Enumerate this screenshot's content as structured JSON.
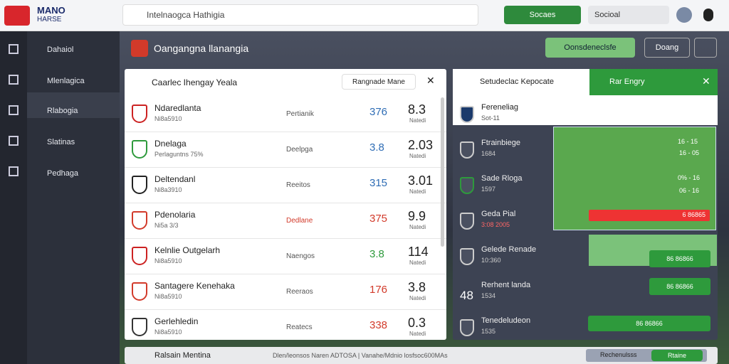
{
  "topbar": {
    "logo": [
      "MANO",
      "HARSE"
    ],
    "search": "Intelnaogca Hathigia",
    "action": "Socaes",
    "select": "Socioal"
  },
  "sidebar": {
    "items": [
      "Dahaiol",
      "Mlenlagica",
      "Rlabogia",
      "Slatinas",
      "Pedhaga"
    ]
  },
  "header": {
    "title": "Oangangna llanangia",
    "primary": "Oonsdeneclsfe",
    "secondary": "Doang"
  },
  "left_panel": {
    "title": "Caarlec Ihengay Yeala",
    "pill": "Rangnade Mane",
    "rows": [
      {
        "name": "Ndaredlanta",
        "sub": "Ni8a5910",
        "status": "Pertianik",
        "score": "376",
        "color": "#2f6db5",
        "big": "8.3",
        "unit": "Natedi"
      },
      {
        "name": "Dnelaga",
        "sub": "Perlaguntns 75%",
        "status": "Deelpga",
        "score": "3.8",
        "color": "#2f6db5",
        "big": "2.03",
        "unit": "Natedi"
      },
      {
        "name": "Deltendanl",
        "sub": "Ni8a3910",
        "status": "Reeitos",
        "score": "315",
        "color": "#2f6db5",
        "big": "3.01",
        "unit": "Natedi"
      },
      {
        "name": "Pdenolaria",
        "sub": "Ni5a 3/3",
        "status": "Dedlane",
        "score": "375",
        "color": "#d23a2a",
        "big": "9.9",
        "unit": "Natedi"
      },
      {
        "name": "Kelnlie Outgelarh",
        "sub": "Ni8a5910",
        "status": "Naengos",
        "score": "3.8",
        "color": "#2e9a3c",
        "big": "114",
        "unit": "Natedi"
      },
      {
        "name": "Santagere Kenehaka",
        "sub": "Ni8a5910",
        "status": "Reeraos",
        "score": "176",
        "color": "#d23a2a",
        "big": "3.8",
        "unit": "Natedi"
      },
      {
        "name": "Gerlehledin",
        "sub": "Ni8a5910",
        "status": "Reatecs",
        "score": "338",
        "color": "#d23a2a",
        "big": "0.3",
        "unit": "Natedi"
      }
    ]
  },
  "right_panel": {
    "tab": "Setudeclac Kepocate",
    "tab_active": "Rar Engry",
    "rows": [
      {
        "name": "Fereneliag",
        "sub": "Sot-11"
      },
      {
        "name": "Ftrainbiege",
        "sub": "1684"
      },
      {
        "name": "Sade Rloga",
        "sub": "1597"
      },
      {
        "name": "Geda Pial",
        "sub": "3:08 2005"
      },
      {
        "name": "Gelede Renade",
        "sub": "10:360"
      },
      {
        "name": "Rerhent landa",
        "sub": "1534",
        "lead": "48"
      },
      {
        "name": "Tenedeludeon",
        "sub": "1535"
      }
    ],
    "field_stats": [
      "16 - 15",
      "16 - 05",
      "0% - 16",
      "06 - 16"
    ],
    "red_bar": "6 86865",
    "buttons": [
      "86 86866",
      "86 86866",
      "86 86866"
    ]
  },
  "bottom": {
    "title": "Ralsain Mentina",
    "text": "Dlen/leonsos Naren ADTOSA | Vanahe/Mdnio losfsoc600MAs",
    "chip": "Rechenulsss",
    "go": "Rtaine"
  }
}
